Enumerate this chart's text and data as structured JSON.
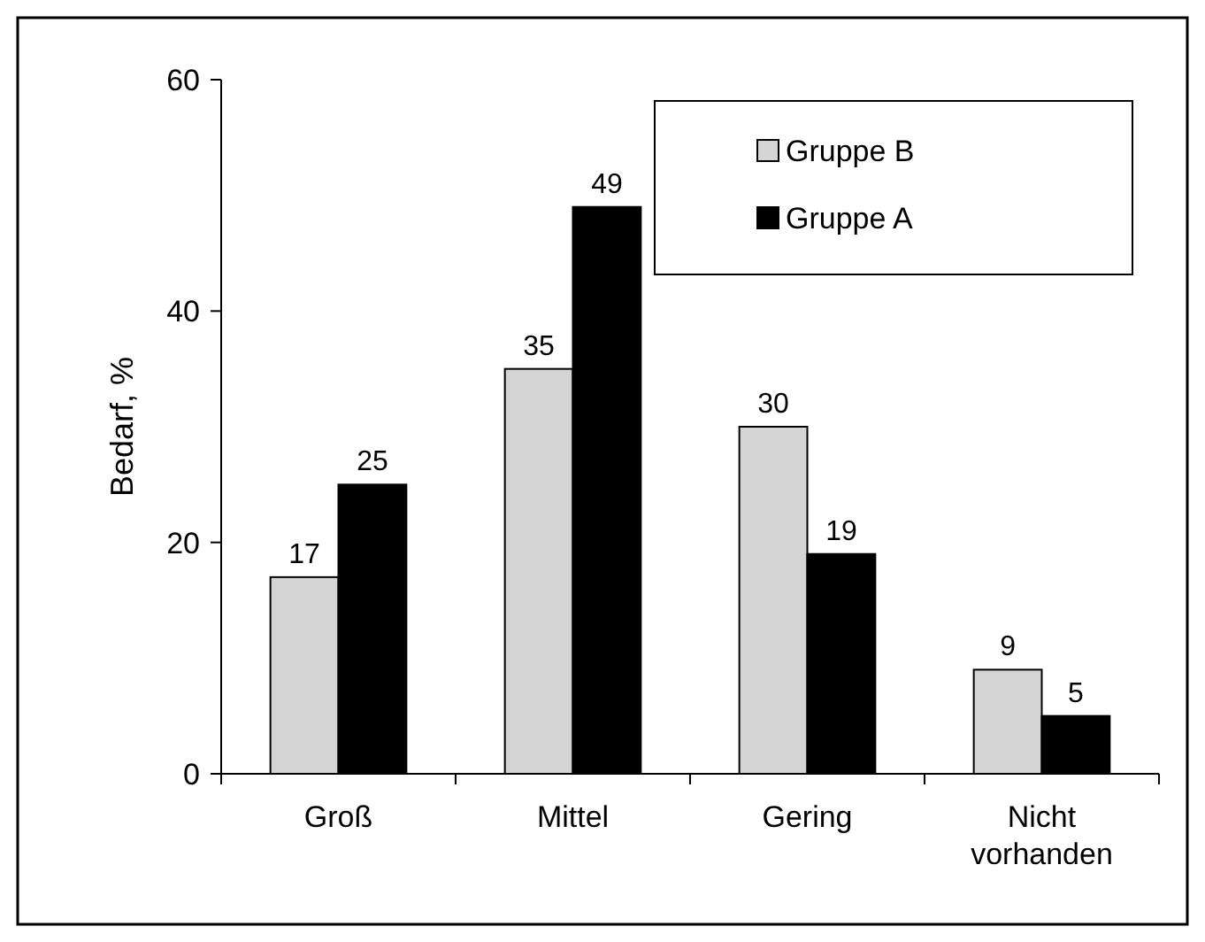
{
  "chart_data": {
    "type": "bar",
    "ylabel": "Bedarf, %",
    "categories": [
      "Groß",
      "Mittel",
      "Gering",
      "Nicht vorhanden"
    ],
    "series": [
      {
        "name": "Gruppe B",
        "color": "#d4d4d4",
        "values": [
          17,
          35,
          30,
          9
        ]
      },
      {
        "name": "Gruppe A",
        "color": "#000000",
        "values": [
          25,
          49,
          19,
          5
        ]
      }
    ],
    "ylim": [
      0,
      60
    ],
    "yticks": [
      0,
      20,
      40,
      60
    ],
    "data_labels": true,
    "legend": "top right",
    "grid": false
  }
}
